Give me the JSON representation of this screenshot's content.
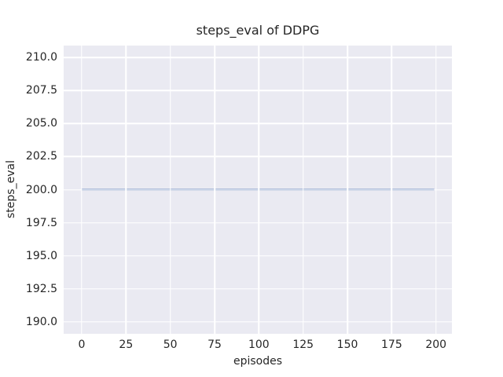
{
  "figure": {
    "background_color": "#ffffff",
    "plot_background_color": "#eaeaf2",
    "grid_color": "#ffffff",
    "text_color": "#262626"
  },
  "chart_data": {
    "type": "line",
    "title": "steps_eval of DDPG",
    "xlabel": "episodes",
    "ylabel": "steps_eval",
    "xlim": [
      -10.2,
      209.0
    ],
    "ylim": [
      189.1,
      210.9
    ],
    "grid": true,
    "legend_visible": false,
    "x_ticks": {
      "values": [
        0,
        25,
        50,
        75,
        100,
        125,
        150,
        175,
        200
      ],
      "labels": [
        "0",
        "25",
        "50",
        "75",
        "100",
        "125",
        "150",
        "175",
        "200"
      ]
    },
    "y_ticks": {
      "values": [
        190.0,
        192.5,
        195.0,
        197.5,
        200.0,
        202.5,
        205.0,
        207.5,
        210.0
      ],
      "labels": [
        "190.0",
        "192.5",
        "195.0",
        "197.5",
        "200.0",
        "202.5",
        "205.0",
        "207.5",
        "210.0"
      ]
    },
    "series": [
      {
        "name": "steps_eval",
        "color": "#4c72b0",
        "line_width": 1.8,
        "constant_value": 200,
        "x": [
          0,
          199
        ],
        "y": [
          200,
          200
        ]
      }
    ]
  }
}
